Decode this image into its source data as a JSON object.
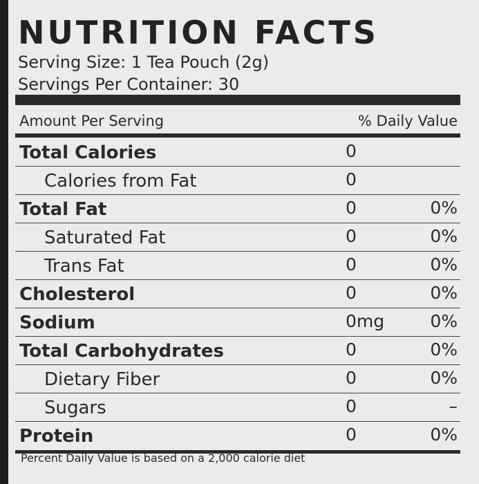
{
  "header": {
    "title": "NUTRITION FACTS",
    "serving_size": "Serving Size: 1 Tea Pouch (2g)",
    "servings_per_container": "Servings Per Container: 30"
  },
  "columns": {
    "amount": "Amount Per Serving",
    "daily_value": "% Daily Value"
  },
  "nutrients": [
    {
      "label": "Total Calories",
      "amount": "0",
      "sub": [
        {
          "label": "Calories from Fat",
          "amount": "0"
        }
      ]
    },
    {
      "label": "Total Fat",
      "amount": "0",
      "daily_value": "0%",
      "sub": [
        {
          "label": "Saturated Fat",
          "amount": "0",
          "daily_value": "0%"
        },
        {
          "label": "Trans Fat",
          "amount": "0",
          "daily_value": "0%"
        }
      ]
    },
    {
      "label": "Cholesterol",
      "amount": "0",
      "daily_value": "0%"
    },
    {
      "label": "Sodium",
      "amount": "0mg",
      "daily_value": "0%"
    },
    {
      "label": "Total Carbohydrates",
      "amount": "0",
      "daily_value": "0%",
      "sub": [
        {
          "label": "Dietary Fiber",
          "amount": "0",
          "daily_value": "0%"
        },
        {
          "label": "Sugars",
          "amount": "0",
          "daily_value": "–"
        }
      ]
    },
    {
      "label": "Protein",
      "amount": "0",
      "daily_value": "0%"
    }
  ],
  "footnote": "Percent Daily Value is based on a 2,000 calorie diet"
}
